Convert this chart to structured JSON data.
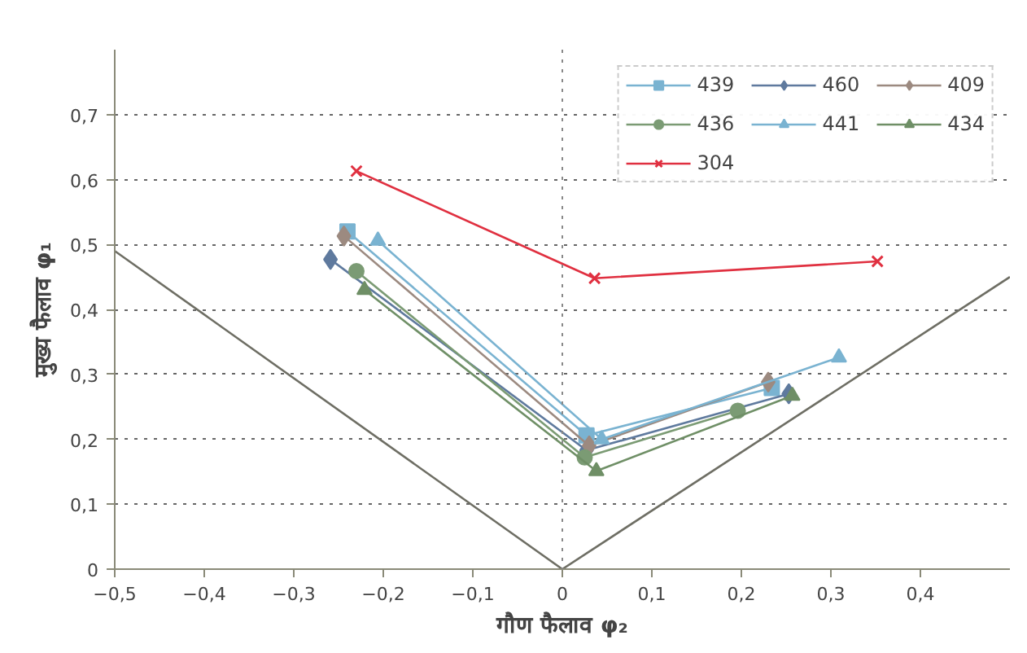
{
  "chart_data": {
    "type": "line",
    "xlabel": "गौण फैलाव φ₂",
    "ylabel": "मुख्य फैलाव φ₁",
    "xlim": [
      -0.5,
      0.5
    ],
    "ylim": [
      0,
      0.8
    ],
    "xticks": [
      {
        "value": -0.5,
        "label": "−0,5"
      },
      {
        "value": -0.4,
        "label": "−0,4"
      },
      {
        "value": -0.3,
        "label": "−0,3"
      },
      {
        "value": -0.2,
        "label": "−0,2"
      },
      {
        "value": -0.1,
        "label": "−0,1"
      },
      0,
      {
        "value": 0.1,
        "label": "0,1"
      },
      {
        "value": 0.2,
        "label": "0,2"
      },
      {
        "value": 0.3,
        "label": "0,3"
      },
      {
        "value": 0.4,
        "label": "0,4"
      }
    ],
    "yticks": [
      0,
      {
        "value": 0.1,
        "label": "0,1"
      },
      {
        "value": 0.2,
        "label": "0,2"
      },
      {
        "value": 0.3,
        "label": "0,3"
      },
      {
        "value": 0.4,
        "label": "0,4"
      },
      {
        "value": 0.5,
        "label": "0,5"
      },
      {
        "value": 0.6,
        "label": "0,6"
      },
      {
        "value": 0.7,
        "label": "0,7"
      }
    ],
    "grid": "y",
    "legend": "top right",
    "ref_lines": [
      {
        "axis": "x",
        "value": 0,
        "color": "#888888",
        "line_style": "dotted"
      }
    ],
    "series": [
      {
        "name": "439",
        "color": "#7ab3d1",
        "marker": "square",
        "x": [
          -0.24,
          0.027,
          0.234
        ],
        "values": [
          0.52,
          0.206,
          0.279
        ]
      },
      {
        "name": "460",
        "color": "#5f7a9e",
        "marker": "diamond",
        "x": [
          -0.259,
          0.027,
          0.253
        ],
        "values": [
          0.477,
          0.183,
          0.27
        ]
      },
      {
        "name": "409",
        "color": "#9c8a80",
        "marker": "diamond",
        "x": [
          -0.244,
          0.03,
          0.23
        ],
        "values": [
          0.513,
          0.19,
          0.288
        ]
      },
      {
        "name": "436",
        "color": "#7b9b74",
        "marker": "circle",
        "x": [
          -0.23,
          0.025,
          0.196
        ],
        "values": [
          0.459,
          0.172,
          0.244
        ]
      },
      {
        "name": "441",
        "color": "#7ab3d1",
        "marker": "triangle",
        "x": [
          -0.206,
          0.044,
          0.309
        ],
        "values": [
          0.506,
          0.2,
          0.326
        ]
      },
      {
        "name": "434",
        "color": "#6f8f66",
        "marker": "triangle",
        "x": [
          -0.221,
          0.038,
          0.257
        ],
        "values": [
          0.43,
          0.151,
          0.267
        ]
      },
      {
        "name": "304",
        "color": "#e03040",
        "marker": "cross",
        "x": [
          -0.23,
          0.036,
          0.352
        ],
        "values": [
          0.613,
          0.448,
          0.474
        ]
      },
      {
        "color": "#6e6e64",
        "marker": "none",
        "x": [
          -0.5,
          0,
          0.5
        ],
        "values": [
          0.49,
          0,
          0.45
        ]
      }
    ]
  }
}
